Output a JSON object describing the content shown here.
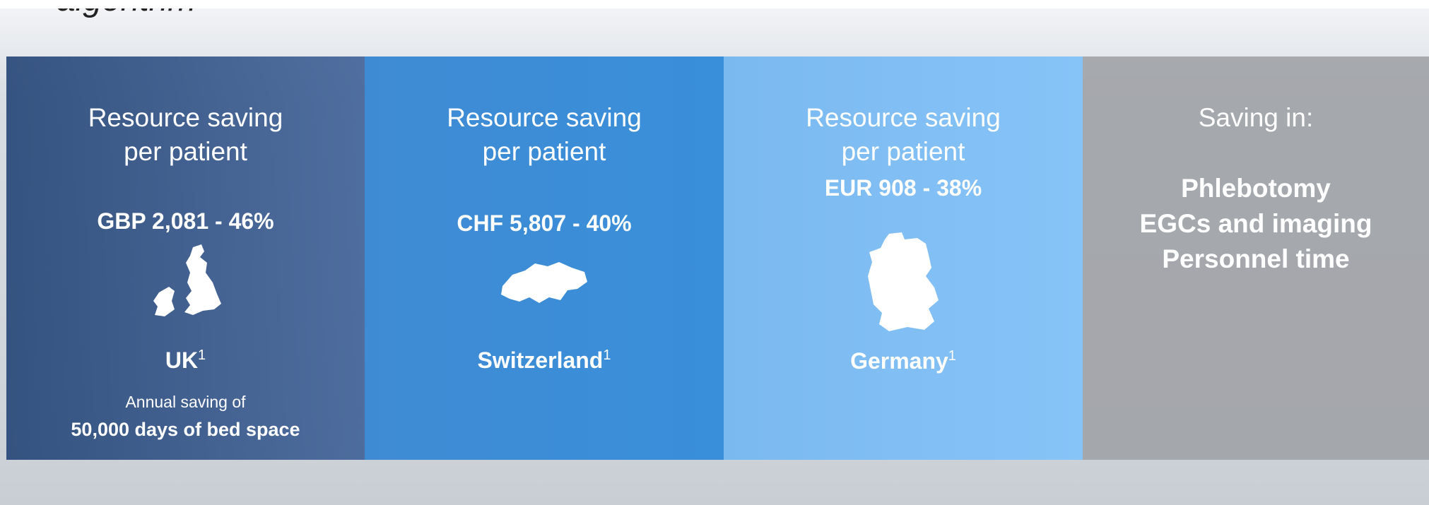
{
  "header": {
    "title_fragment": "algorithm"
  },
  "panels": [
    {
      "heading": [
        "Resource saving",
        "per patient"
      ],
      "value": "GBP 2,081 - 46%",
      "country": "UK",
      "footnote": "1",
      "note": "Annual saving of",
      "note_bold": "50,000 days of bed space"
    },
    {
      "heading": [
        "Resource saving",
        "per patient"
      ],
      "value": "CHF 5,807 - 40%",
      "country": "Switzerland",
      "footnote": "1"
    },
    {
      "heading": [
        "Resource saving",
        "per patient"
      ],
      "value": "EUR 908 - 38%",
      "country": "Germany",
      "footnote": "1"
    },
    {
      "heading": [
        "Saving in:"
      ],
      "items": [
        "Phlebotomy",
        "EGCs and imaging",
        "Personnel time"
      ]
    }
  ]
}
